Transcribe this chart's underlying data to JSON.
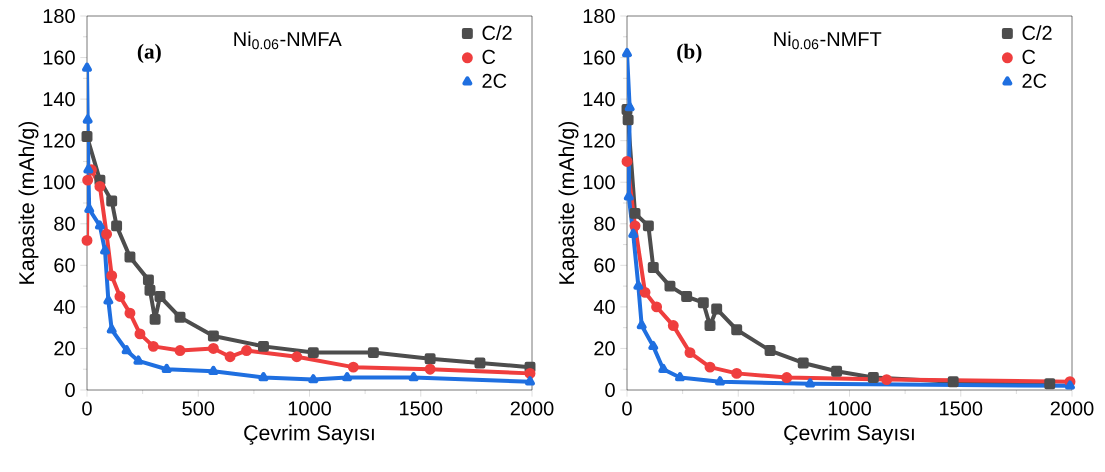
{
  "chart_data": [
    {
      "type": "line",
      "title": "Ni$_{0.06}$-NMFA",
      "xlabel": "Çevrim Sayısı",
      "ylabel": "Kapasite (mAh/g)",
      "annotations": [
        "(a)"
      ],
      "xlim": [
        0,
        2000
      ],
      "ylim": [
        0,
        180
      ],
      "xticks": [
        0,
        500,
        1000,
        1500,
        2000
      ],
      "yticks": [
        0,
        20,
        40,
        60,
        80,
        100,
        120,
        140,
        160,
        180
      ],
      "legend": "top right",
      "line_style": "solid",
      "series": [
        {
          "name": "C/2",
          "color": "#4d4d4d",
          "marker": "square",
          "x": [
            0,
            58,
            111,
            133,
            193,
            276,
            283,
            306,
            328,
            418,
            568,
            793,
            1017,
            1287,
            1542,
            1766,
            1991
          ],
          "values": [
            122,
            101,
            91,
            79,
            64,
            53,
            48,
            34,
            45,
            35,
            26,
            21,
            18,
            18,
            15,
            13,
            11
          ]
        },
        {
          "name": "C",
          "color": "#ef3e3e",
          "marker": "circle",
          "x": [
            0,
            3,
            20,
            58,
            88,
            111,
            148,
            193,
            238,
            298,
            418,
            568,
            643,
            717,
            943,
            1197,
            1542,
            1991
          ],
          "values": [
            72,
            101,
            106,
            98,
            75,
            55,
            45,
            37,
            27,
            21,
            19,
            20,
            16,
            19,
            16,
            11,
            10,
            8
          ]
        },
        {
          "name": "2C",
          "color": "#1f6fe0",
          "marker": "triangle",
          "x": [
            0,
            3,
            6,
            10,
            58,
            81,
            96,
            111,
            178,
            231,
            358,
            568,
            793,
            1017,
            1169,
            1468,
            1991
          ],
          "values": [
            155,
            130,
            106,
            87,
            79,
            67,
            43,
            29,
            19,
            14,
            10,
            9,
            6,
            5,
            6,
            6,
            4
          ]
        }
      ]
    },
    {
      "type": "line",
      "title": "Ni$_{0.06}$-NMFT",
      "xlabel": "Çevrim Sayısı",
      "ylabel": "Kapasite (mAh/g)",
      "annotations": [
        "(b)"
      ],
      "xlim": [
        0,
        2000
      ],
      "ylim": [
        0,
        180
      ],
      "xticks": [
        0,
        500,
        1000,
        1500,
        2000
      ],
      "yticks": [
        0,
        20,
        40,
        60,
        80,
        100,
        120,
        140,
        160,
        180
      ],
      "legend": "top right",
      "line_style": "solid",
      "series": [
        {
          "name": "C/2",
          "color": "#4d4d4d",
          "marker": "square",
          "x": [
            0,
            5,
            36,
            96,
            118,
            193,
            268,
            343,
            373,
            403,
            493,
            643,
            792,
            942,
            1107,
            1466,
            1900
          ],
          "values": [
            135,
            130,
            85,
            79,
            59,
            50,
            45,
            42,
            31,
            39,
            29,
            19,
            13,
            9,
            6,
            4,
            3
          ]
        },
        {
          "name": "C",
          "color": "#ef3e3e",
          "marker": "circle",
          "x": [
            0,
            36,
            81,
            133,
            208,
            283,
            373,
            493,
            718,
            1167,
            1991
          ],
          "values": [
            110,
            79,
            47,
            40,
            31,
            18,
            11,
            8,
            6,
            5,
            4
          ]
        },
        {
          "name": "2C",
          "color": "#1f6fe0",
          "marker": "triangle",
          "x": [
            0,
            12,
            8,
            28,
            51,
            66,
            118,
            163,
            238,
            418,
            823,
            1991
          ],
          "values": [
            162,
            136,
            93,
            75,
            50,
            31,
            21,
            10,
            6,
            4,
            3,
            2
          ]
        }
      ]
    }
  ]
}
